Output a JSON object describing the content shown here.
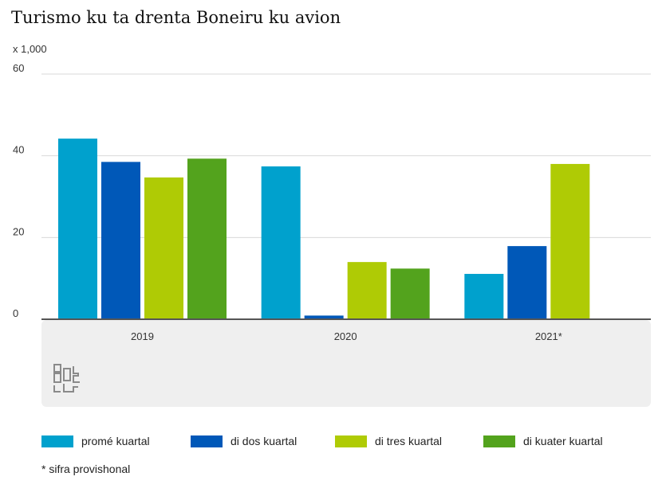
{
  "chart_data": {
    "type": "bar",
    "title": "Turismo ku ta drenta Boneiru ku avion",
    "unit_label": "x 1,000",
    "categories": [
      "2019",
      "2020",
      "2021*"
    ],
    "ylim": [
      0,
      60
    ],
    "yticks": [
      0,
      20,
      40,
      60
    ],
    "grid": true,
    "legend_position": "bottom",
    "series": [
      {
        "name": "promé kuartal",
        "color": "#00a1cd",
        "values": [
          44.2,
          37.4,
          11.1
        ]
      },
      {
        "name": "di dos kuartal",
        "color": "#0058b8",
        "values": [
          38.5,
          0.9,
          17.9
        ]
      },
      {
        "name": "di tres kuartal",
        "color": "#afcb05",
        "values": [
          34.7,
          14.0,
          38.0
        ]
      },
      {
        "name": "di kuater kuartal",
        "color": "#53a31d",
        "values": [
          39.3,
          12.4,
          null
        ]
      }
    ],
    "footnote": "* sifra provishonal"
  },
  "logo": {
    "name": "cbs-logo",
    "text": "cbs",
    "color": "#8a8a8a"
  },
  "colors": {
    "panel": "#efefef",
    "grid": "#d9d9d9",
    "axis": "#555555"
  }
}
